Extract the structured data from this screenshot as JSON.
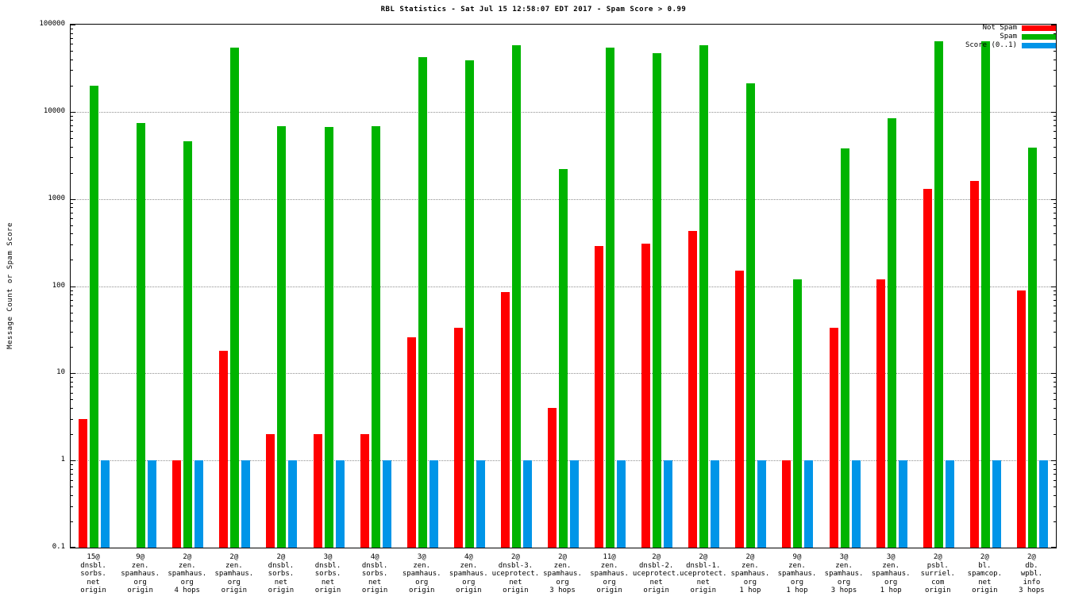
{
  "page": {
    "title": "RBL Statistics - Sat Jul 15 12:58:07 EDT 2017 - Spam Score > 0.99"
  },
  "chart_data": {
    "type": "bar",
    "title": "RBL Statistics - Sat Jul 15 12:58:07 EDT 2017 - Spam Score > 0.99",
    "xlabel": "",
    "ylabel": "Message Count or Spam Score",
    "y_scale": "log",
    "ylim": [
      0.1,
      100000
    ],
    "yticks": [
      "0.1",
      "1",
      "10",
      "100",
      "1000",
      "10000",
      "100000"
    ],
    "grid": true,
    "legend_position": "top-right",
    "categories": [
      [
        "15@",
        "dnsbl.",
        "sorbs.",
        "net",
        "origin"
      ],
      [
        "9@",
        "zen.",
        "spamhaus.",
        "org",
        "origin"
      ],
      [
        "2@",
        "zen.",
        "spamhaus.",
        "org",
        "4 hops"
      ],
      [
        "2@",
        "zen.",
        "spamhaus.",
        "org",
        "origin"
      ],
      [
        "2@",
        "dnsbl.",
        "sorbs.",
        "net",
        "origin"
      ],
      [
        "3@",
        "dnsbl.",
        "sorbs.",
        "net",
        "origin"
      ],
      [
        "4@",
        "dnsbl.",
        "sorbs.",
        "net",
        "origin"
      ],
      [
        "3@",
        "zen.",
        "spamhaus.",
        "org",
        "origin"
      ],
      [
        "4@",
        "zen.",
        "spamhaus.",
        "org",
        "origin"
      ],
      [
        "2@",
        "dnsbl-3.",
        "uceprotect.",
        "net",
        "origin"
      ],
      [
        "2@",
        "zen.",
        "spamhaus.",
        "org",
        "3 hops"
      ],
      [
        "11@",
        "zen.",
        "spamhaus.",
        "org",
        "origin"
      ],
      [
        "2@",
        "dnsbl-2.",
        "uceprotect.",
        "net",
        "origin"
      ],
      [
        "2@",
        "dnsbl-1.",
        "uceprotect.",
        "net",
        "origin"
      ],
      [
        "2@",
        "zen.",
        "spamhaus.",
        "org",
        "1 hop"
      ],
      [
        "9@",
        "zen.",
        "spamhaus.",
        "org",
        "1 hop"
      ],
      [
        "3@",
        "zen.",
        "spamhaus.",
        "org",
        "3 hops"
      ],
      [
        "3@",
        "zen.",
        "spamhaus.",
        "org",
        "1 hop"
      ],
      [
        "2@",
        "psbl.",
        "surriel.",
        "com",
        "origin"
      ],
      [
        "2@",
        "bl.",
        "spamcop.",
        "net",
        "origin"
      ],
      [
        "2@",
        "db.",
        "wpbl.",
        "info",
        "3 hops"
      ]
    ],
    "series": [
      {
        "name": "Not Spam",
        "color": "#ff0000",
        "values": [
          3,
          null,
          1,
          18,
          2,
          2,
          2,
          26,
          33,
          85,
          4,
          290,
          310,
          430,
          150,
          1,
          33,
          120,
          1300,
          1600,
          90
        ]
      },
      {
        "name": "Spam",
        "color": "#00b400",
        "values": [
          20000,
          7500,
          4600,
          55000,
          6800,
          6700,
          6800,
          42000,
          39000,
          58000,
          2200,
          55000,
          47000,
          58000,
          21000,
          120,
          3800,
          8500,
          65000,
          65000,
          3900
        ]
      },
      {
        "name": "Score (0..1)",
        "color": "#0095e8",
        "values": [
          1,
          1,
          1,
          1,
          1,
          1,
          1,
          1,
          1,
          1,
          1,
          1,
          1,
          1,
          1,
          1,
          1,
          1,
          1,
          1,
          1
        ]
      }
    ]
  }
}
